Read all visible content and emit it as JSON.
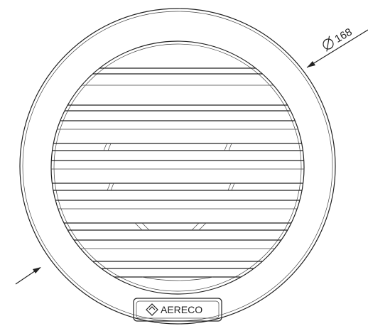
{
  "dimension": {
    "label": "168"
  },
  "logo": {
    "text": "AERECO"
  }
}
